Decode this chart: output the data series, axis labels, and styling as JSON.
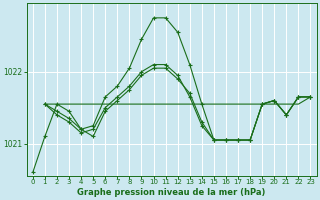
{
  "bg_color": "#cce8f0",
  "grid_color": "#ffffff",
  "line_color": "#1a6e1a",
  "marker_color": "#1a6e1a",
  "xlabel": "Graphe pression niveau de la mer (hPa)",
  "ylim": [
    1020.55,
    1022.95
  ],
  "yticks": [
    1021,
    1022
  ],
  "xlim": [
    -0.5,
    23.5
  ],
  "xticks": [
    0,
    1,
    2,
    3,
    4,
    5,
    6,
    7,
    8,
    9,
    10,
    11,
    12,
    13,
    14,
    15,
    16,
    17,
    18,
    19,
    20,
    21,
    22,
    23
  ],
  "series": [
    {
      "x": [
        0,
        1,
        2,
        3,
        4,
        5,
        6,
        7,
        8,
        9,
        10,
        11,
        12,
        13,
        14,
        15,
        16,
        17,
        18,
        19,
        20,
        21,
        22,
        23
      ],
      "y": [
        1020.6,
        1021.1,
        1021.55,
        1021.45,
        1021.2,
        1021.25,
        1021.65,
        1021.8,
        1022.05,
        1022.45,
        1022.75,
        1022.75,
        1022.55,
        1022.1,
        1021.55,
        1021.05,
        1021.05,
        1021.05,
        1021.05,
        1021.55,
        1021.6,
        1021.4,
        1021.65,
        1021.65
      ],
      "has_markers": true
    },
    {
      "x": [
        1,
        2,
        3,
        4,
        5,
        6,
        7,
        8,
        9,
        10,
        11,
        12,
        13,
        14,
        15,
        16,
        17,
        18,
        19,
        20,
        21,
        22,
        23
      ],
      "y": [
        1021.55,
        1021.55,
        1021.55,
        1021.55,
        1021.55,
        1021.55,
        1021.55,
        1021.55,
        1021.55,
        1021.55,
        1021.55,
        1021.55,
        1021.55,
        1021.55,
        1021.55,
        1021.55,
        1021.55,
        1021.55,
        1021.55,
        1021.55,
        1021.55,
        1021.55,
        1021.65
      ],
      "has_markers": false
    },
    {
      "x": [
        1,
        2,
        3,
        4,
        5,
        6,
        7,
        8,
        9,
        10,
        11,
        12,
        13,
        14,
        15,
        16,
        17,
        18,
        19,
        20,
        21,
        22,
        23
      ],
      "y": [
        1021.55,
        1021.45,
        1021.35,
        1021.2,
        1021.1,
        1021.45,
        1021.6,
        1021.75,
        1021.95,
        1022.05,
        1022.05,
        1021.9,
        1021.7,
        1021.3,
        1021.05,
        1021.05,
        1021.05,
        1021.05,
        1021.55,
        1021.6,
        1021.4,
        1021.65,
        1021.65
      ],
      "has_markers": true
    },
    {
      "x": [
        1,
        2,
        3,
        4,
        5,
        6,
        7,
        8,
        9,
        10,
        11,
        12,
        13,
        14,
        15,
        16,
        17,
        18,
        19,
        20,
        21,
        22,
        23
      ],
      "y": [
        1021.55,
        1021.4,
        1021.3,
        1021.15,
        1021.2,
        1021.5,
        1021.65,
        1021.8,
        1022.0,
        1022.1,
        1022.1,
        1021.95,
        1021.65,
        1021.25,
        1021.05,
        1021.05,
        1021.05,
        1021.05,
        1021.55,
        1021.6,
        1021.4,
        1021.65,
        1021.65
      ],
      "has_markers": true
    }
  ]
}
